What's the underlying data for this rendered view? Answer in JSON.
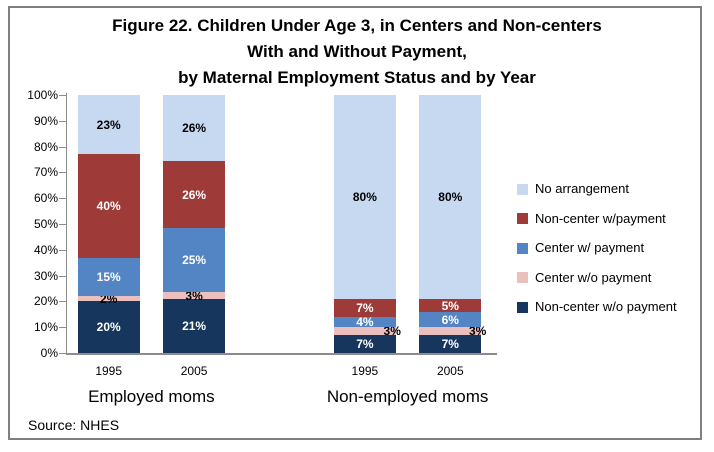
{
  "title": {
    "lines": [
      "Figure 22. Children Under Age 3, in Centers and Non-centers",
      "With and Without Payment,",
      "by Maternal Employment Status and by Year"
    ]
  },
  "source": "Source: NHES",
  "colors": {
    "no_arrangement": "#c6d9f1",
    "non_center_w_payment": "#9e3b38",
    "center_w_payment": "#5385c4",
    "center_wo_payment": "#eabfbe",
    "non_center_wo_payment": "#17365d",
    "axis": "#8c8c8c",
    "frame_border": "#7f7f7f"
  },
  "chart_data": {
    "type": "bar",
    "stacked": true,
    "unit": "%",
    "ylim": [
      0,
      100
    ],
    "grid": false,
    "legend_position": "right",
    "y_ticks": [
      "100%",
      "90%",
      "80%",
      "70%",
      "60%",
      "50%",
      "40%",
      "30%",
      "20%",
      "10%",
      "0%"
    ],
    "groups": [
      {
        "label": "Employed moms",
        "categories": [
          "1995",
          "2005"
        ]
      },
      {
        "label": "Non-employed moms",
        "categories": [
          "1995",
          "2005"
        ]
      }
    ],
    "series": [
      {
        "name": "No arrangement",
        "color": "#c6d9f1",
        "label_color": "#000000",
        "values": [
          23,
          26,
          80,
          80
        ]
      },
      {
        "name": "Non-center w/payment",
        "color": "#9e3b38",
        "label_color": "#ffffff",
        "values": [
          40,
          26,
          7,
          5
        ]
      },
      {
        "name": "Center w/ payment",
        "color": "#5385c4",
        "label_color": "#ffffff",
        "values": [
          15,
          25,
          4,
          6
        ]
      },
      {
        "name": "Center w/o payment",
        "color": "#eabfbe",
        "label_color": "#000000",
        "values": [
          2,
          3,
          3,
          3
        ],
        "label_align": [
          "center",
          "center",
          "right",
          "right"
        ]
      },
      {
        "name": "Non-center w/o payment",
        "color": "#17365d",
        "label_color": "#ffffff",
        "values": [
          20,
          21,
          7,
          7
        ]
      }
    ]
  }
}
